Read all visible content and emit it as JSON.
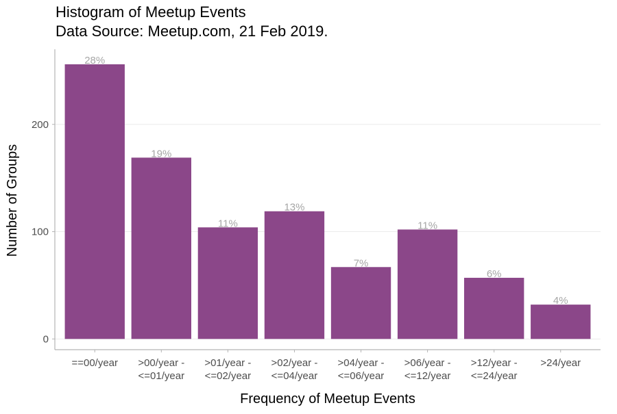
{
  "chart_data": {
    "type": "bar",
    "title": "Histogram of Meetup Events",
    "subtitle": "Data Source: Meetup.com, 21 Feb 2019.",
    "xlabel": "Frequency of Meetup Events",
    "ylabel": "Number of Groups",
    "categories": [
      [
        "==00/year"
      ],
      [
        ">00/year -",
        "<=01/year"
      ],
      [
        ">01/year -",
        "<=02/year"
      ],
      [
        ">02/year -",
        "<=04/year"
      ],
      [
        ">04/year -",
        "<=06/year"
      ],
      [
        ">06/year -",
        "<=12/year"
      ],
      [
        ">12/year -",
        "<=24/year"
      ],
      [
        ">24/year"
      ]
    ],
    "values": [
      256,
      169,
      104,
      119,
      67,
      102,
      57,
      32
    ],
    "data_labels": [
      "28%",
      "19%",
      "11%",
      "13%",
      "7%",
      "11%",
      "6%",
      "4%"
    ],
    "yticks": [
      0,
      100,
      200
    ],
    "ylim": [
      -10,
      270
    ],
    "grid": "horizontal",
    "legend": "none",
    "colors": {
      "bar": "#8B4789",
      "data_label": "#A6A6A6",
      "grid": "#EBEBEB",
      "axis": "#B3B3B3",
      "tick_label": "#4D4D4D",
      "text": "#000000"
    }
  }
}
